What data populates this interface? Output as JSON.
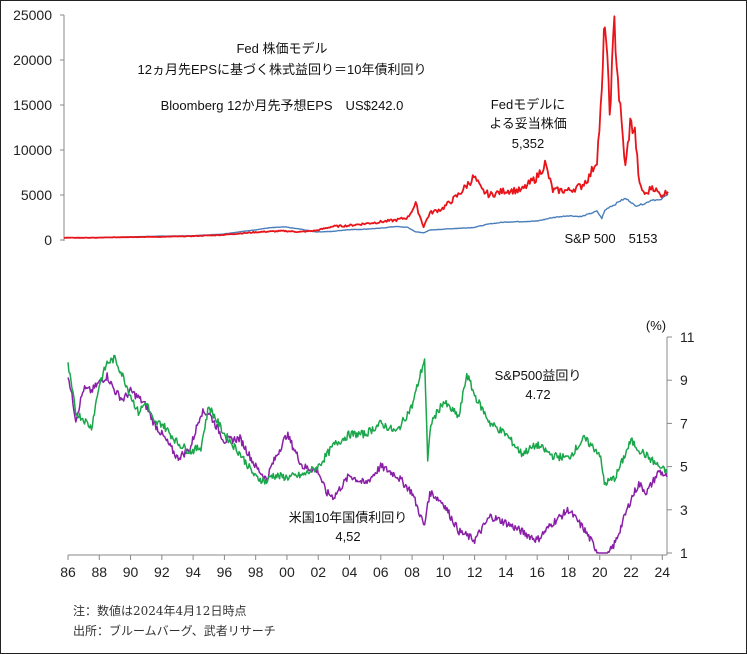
{
  "notes": {
    "note": "注：数値は2024年4月12日時点",
    "source": "出所：ブルームバーグ、武者リサーチ"
  },
  "chart_data": [
    {
      "type": "line",
      "title_lines": [
        "Fed 株価モデル",
        "12ヵ月先EPSに基づく株式益回り＝10年債利回り",
        "Bloomberg 12か月先予想EPS　US$242.0"
      ],
      "xlabel": "",
      "ylabel": "",
      "xlim": [
        1986,
        2024.3
      ],
      "ylim": [
        0,
        25000
      ],
      "yticks": [
        0,
        5000,
        10000,
        15000,
        20000,
        25000
      ],
      "grid": false,
      "annotations": [
        {
          "id": "fed",
          "lines": [
            "Fedモデルに",
            "よる妥当株価",
            "5,352"
          ]
        },
        {
          "id": "spx",
          "lines": [
            "S&P 500　5153"
          ]
        }
      ],
      "colors": {
        "fed_model": "#e8141a",
        "sp500": "#4a7ebb"
      },
      "x": [
        1986,
        1988,
        1990,
        1992,
        1994,
        1996,
        1998,
        1999,
        2000,
        2001,
        2002,
        2003,
        2004,
        2005,
        2006,
        2007,
        2007.8,
        2008.3,
        2008.8,
        2009.2,
        2010,
        2011,
        2012,
        2012.5,
        2013,
        2014,
        2015,
        2016,
        2016.5,
        2017,
        2018,
        2018.8,
        2019.3,
        2019.8,
        2020.1,
        2020.3,
        2020.6,
        2020.9,
        2021.2,
        2021.6,
        2021.9,
        2022.2,
        2022.5,
        2022.9,
        2023.3,
        2023.8,
        2024.3
      ],
      "series": [
        {
          "name": "Fedモデルによる妥当株価",
          "values": [
            250,
            250,
            330,
            350,
            420,
            560,
            850,
            950,
            1000,
            900,
            1050,
            1500,
            1600,
            1800,
            2000,
            2200,
            2500,
            4000,
            1500,
            3000,
            3500,
            5000,
            7000,
            5500,
            5000,
            5500,
            5500,
            7000,
            8500,
            5500,
            5500,
            6000,
            7000,
            9000,
            16000,
            25000,
            14000,
            24000,
            16000,
            8000,
            13000,
            12000,
            6000,
            5000,
            6000,
            5000,
            5352
          ]
        },
        {
          "name": "S&P 500",
          "values": [
            240,
            260,
            330,
            420,
            460,
            650,
            1100,
            1350,
            1450,
            1200,
            900,
            950,
            1150,
            1200,
            1300,
            1500,
            1400,
            900,
            800,
            1100,
            1200,
            1300,
            1400,
            1600,
            1800,
            2000,
            2050,
            2100,
            2300,
            2500,
            2700,
            2600,
            2900,
            3200,
            2400,
            3300,
            3700,
            3900,
            4300,
            4600,
            4300,
            3800,
            3900,
            4100,
            4500,
            4400,
            5153
          ]
        }
      ]
    },
    {
      "type": "line",
      "xlabel": "",
      "ylabel": "(%)",
      "xlim": [
        1986,
        2024.3
      ],
      "ylim": [
        1,
        11
      ],
      "xticks": [
        "86",
        "88",
        "90",
        "92",
        "94",
        "96",
        "98",
        "00",
        "02",
        "04",
        "06",
        "08",
        "10",
        "12",
        "14",
        "16",
        "18",
        "20",
        "22",
        "24"
      ],
      "yticks": [
        1,
        3,
        5,
        7,
        9,
        11
      ],
      "grid": false,
      "annotations": [
        {
          "id": "ey",
          "lines": [
            "S&P500益回り",
            "4.72"
          ]
        },
        {
          "id": "ty",
          "lines": [
            "米国10年国債利回り",
            "4,52"
          ]
        }
      ],
      "colors": {
        "earnings_yield": "#1aa64a",
        "treasury": "#8a1fa8"
      },
      "x": [
        1986,
        1986.5,
        1987,
        1987.5,
        1988,
        1988.5,
        1989,
        1989.5,
        1990,
        1990.5,
        1991,
        1991.5,
        1992,
        1993,
        1993.8,
        1994.5,
        1995,
        1996,
        1997,
        1998,
        1998.7,
        1999,
        2000,
        2001,
        2002,
        2002.5,
        2003,
        2004,
        2005,
        2006,
        2007,
        2008,
        2008.8,
        2009,
        2009.2,
        2010,
        2011,
        2011.5,
        2012,
        2013,
        2014,
        2015,
        2016,
        2017,
        2018,
        2019,
        2020,
        2020.3,
        2021,
        2022,
        2022.5,
        2023,
        2023.8,
        2024.3
      ],
      "series": [
        {
          "name": "S&P500益回り",
          "values": [
            9.7,
            7.5,
            7.2,
            6.8,
            8.8,
            9.8,
            10.0,
            9.2,
            8.3,
            7.5,
            8.0,
            7.0,
            7.0,
            6.1,
            5.7,
            5.9,
            7.8,
            6.5,
            5.6,
            4.5,
            4.3,
            4.6,
            4.5,
            4.6,
            5.0,
            5.5,
            6.0,
            6.5,
            6.5,
            7.0,
            6.6,
            7.8,
            10.0,
            5.2,
            7.0,
            8.0,
            7.3,
            9.3,
            8.3,
            7.0,
            6.5,
            5.6,
            6.0,
            5.5,
            5.4,
            6.3,
            5.6,
            4.2,
            4.5,
            6.2,
            5.8,
            5.5,
            5.0,
            4.72
          ]
        },
        {
          "name": "米国10年国債利回り",
          "values": [
            9.3,
            7.2,
            8.6,
            8.5,
            8.9,
            9.2,
            8.5,
            8.1,
            8.5,
            8.2,
            7.8,
            7.0,
            6.5,
            5.4,
            5.8,
            7.5,
            7.5,
            6.2,
            6.3,
            5.0,
            4.4,
            5.0,
            6.5,
            5.0,
            4.8,
            3.8,
            3.6,
            4.6,
            4.2,
            5.0,
            4.6,
            3.8,
            2.2,
            3.4,
            3.8,
            3.3,
            2.0,
            1.8,
            1.6,
            2.7,
            2.4,
            2.0,
            1.6,
            2.4,
            3.0,
            2.1,
            0.9,
            0.6,
            1.5,
            3.5,
            4.2,
            3.8,
            4.8,
            4.52
          ]
        }
      ]
    }
  ]
}
